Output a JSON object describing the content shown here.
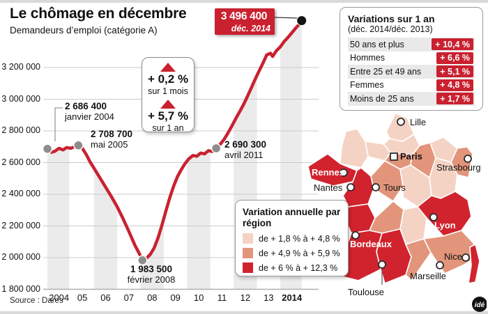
{
  "colors": {
    "accent_red": "#c92130",
    "map_light": "#f5d3c4",
    "map_medium": "#e2957a",
    "map_dark": "#d1232e",
    "band_gray": "#ebebeb"
  },
  "header": {
    "title": "Le chômage en décembre",
    "subtitle": "Demandeurs d’emploi (catégorie A)",
    "badge_value": "3 496 400",
    "badge_date": "déc. 2014"
  },
  "chart_data": {
    "type": "area",
    "title": "Demandeurs d’emploi (catégorie A)",
    "xlabel": "",
    "ylabel": "",
    "x_ticks": [
      "2004",
      "05",
      "06",
      "07",
      "08",
      "09",
      "10",
      "11",
      "12",
      "13",
      "2014"
    ],
    "y_ticks": [
      "3 200 000",
      "3 000 000",
      "2 800 000",
      "2 600 000",
      "2 400 000",
      "2 200 000",
      "2 000 000",
      "1 800 000"
    ],
    "ylim": [
      1800000,
      3550000
    ],
    "xlim": [
      2004,
      2015
    ],
    "grid": true,
    "band_years_shaded": [
      2004,
      2006,
      2008,
      2010,
      2012,
      2014
    ],
    "series": [
      {
        "name": "Demandeurs d’emploi (catégorie A)",
        "points": [
          [
            2004.0,
            2686400
          ],
          [
            2004.17,
            2665000
          ],
          [
            2004.33,
            2672000
          ],
          [
            2004.5,
            2690000
          ],
          [
            2004.67,
            2680000
          ],
          [
            2004.83,
            2695000
          ],
          [
            2005.0,
            2690000
          ],
          [
            2005.17,
            2700000
          ],
          [
            2005.33,
            2708700
          ],
          [
            2005.5,
            2690000
          ],
          [
            2005.67,
            2650000
          ],
          [
            2005.83,
            2605000
          ],
          [
            2006.0,
            2565000
          ],
          [
            2006.25,
            2505000
          ],
          [
            2006.5,
            2445000
          ],
          [
            2006.75,
            2385000
          ],
          [
            2007.0,
            2320000
          ],
          [
            2007.25,
            2245000
          ],
          [
            2007.5,
            2165000
          ],
          [
            2007.75,
            2080000
          ],
          [
            2008.0,
            2010000
          ],
          [
            2008.08,
            1983500
          ],
          [
            2008.25,
            1995000
          ],
          [
            2008.42,
            2020000
          ],
          [
            2008.58,
            2060000
          ],
          [
            2008.75,
            2125000
          ],
          [
            2008.92,
            2205000
          ],
          [
            2009.08,
            2290000
          ],
          [
            2009.25,
            2375000
          ],
          [
            2009.42,
            2450000
          ],
          [
            2009.58,
            2510000
          ],
          [
            2009.75,
            2555000
          ],
          [
            2009.92,
            2595000
          ],
          [
            2010.08,
            2625000
          ],
          [
            2010.25,
            2645000
          ],
          [
            2010.42,
            2640000
          ],
          [
            2010.58,
            2660000
          ],
          [
            2010.75,
            2655000
          ],
          [
            2010.92,
            2675000
          ],
          [
            2011.08,
            2670000
          ],
          [
            2011.25,
            2690300
          ],
          [
            2011.42,
            2715000
          ],
          [
            2011.58,
            2745000
          ],
          [
            2011.75,
            2785000
          ],
          [
            2011.92,
            2830000
          ],
          [
            2012.08,
            2875000
          ],
          [
            2012.25,
            2920000
          ],
          [
            2012.42,
            2965000
          ],
          [
            2012.58,
            3015000
          ],
          [
            2012.75,
            3070000
          ],
          [
            2012.92,
            3125000
          ],
          [
            2013.08,
            3175000
          ],
          [
            2013.25,
            3225000
          ],
          [
            2013.42,
            3280000
          ],
          [
            2013.58,
            3290000
          ],
          [
            2013.67,
            3270000
          ],
          [
            2013.83,
            3305000
          ],
          [
            2014.0,
            3330000
          ],
          [
            2014.17,
            3365000
          ],
          [
            2014.33,
            3390000
          ],
          [
            2014.5,
            3420000
          ],
          [
            2014.67,
            3450000
          ],
          [
            2014.83,
            3475000
          ],
          [
            2014.92,
            3496400
          ]
        ]
      }
    ],
    "key_points": [
      {
        "t": 2004.0,
        "v": 2686400,
        "value_label": "2 686 400",
        "date_label": "janvier 2004",
        "dot": "gray"
      },
      {
        "t": 2005.33,
        "v": 2708700,
        "value_label": "2 708 700",
        "date_label": "mai 2005",
        "dot": "gray"
      },
      {
        "t": 2008.08,
        "v": 1983500,
        "value_label": "1 983 500",
        "date_label": "février 2008",
        "dot": "gray"
      },
      {
        "t": 2011.25,
        "v": 2690300,
        "value_label": "2 690 300",
        "date_label": "avril 2011",
        "dot": "gray"
      },
      {
        "t": 2014.92,
        "v": 3496400,
        "value_label": "3 496 400",
        "date_label": "déc. 2014",
        "dot": "black"
      }
    ],
    "callout": {
      "month_value": "+ 0,2 %",
      "month_label": "sur 1 mois",
      "year_value": "+ 5,7 %",
      "year_label": "sur 1 an"
    },
    "source": "Source : Dares"
  },
  "panel": {
    "title": "Variations sur 1 an",
    "subtitle": "(déc. 2014/déc. 2013)",
    "rows": [
      {
        "label": "50 ans et plus",
        "value": "+ 10,4 %"
      },
      {
        "label": "Hommes",
        "value": "+ 6,6 %"
      },
      {
        "label": "Entre 25 et 49 ans",
        "value": "+ 5,1 %"
      },
      {
        "label": "Femmes",
        "value": "+ 4,8 %"
      },
      {
        "label": "Moins de 25 ans",
        "value": "+ 1,7 %"
      }
    ]
  },
  "map": {
    "legend_title": "Variation annuelle par région",
    "legend": [
      {
        "label": "de + 1,8 % à + 4,8 %",
        "level": "light"
      },
      {
        "label": "de + 4,9 % à + 5,9 %",
        "level": "medium"
      },
      {
        "label": "de + 6 % à + 12,3 %",
        "level": "dark"
      }
    ],
    "cities": [
      {
        "name": "Lille"
      },
      {
        "name": "Paris"
      },
      {
        "name": "Strasbourg"
      },
      {
        "name": "Rennes"
      },
      {
        "name": "Nantes"
      },
      {
        "name": "Tours"
      },
      {
        "name": "Bordeaux"
      },
      {
        "name": "Lyon"
      },
      {
        "name": "Toulouse"
      },
      {
        "name": "Marseille"
      },
      {
        "name": "Nice"
      }
    ],
    "logo": "idé"
  }
}
